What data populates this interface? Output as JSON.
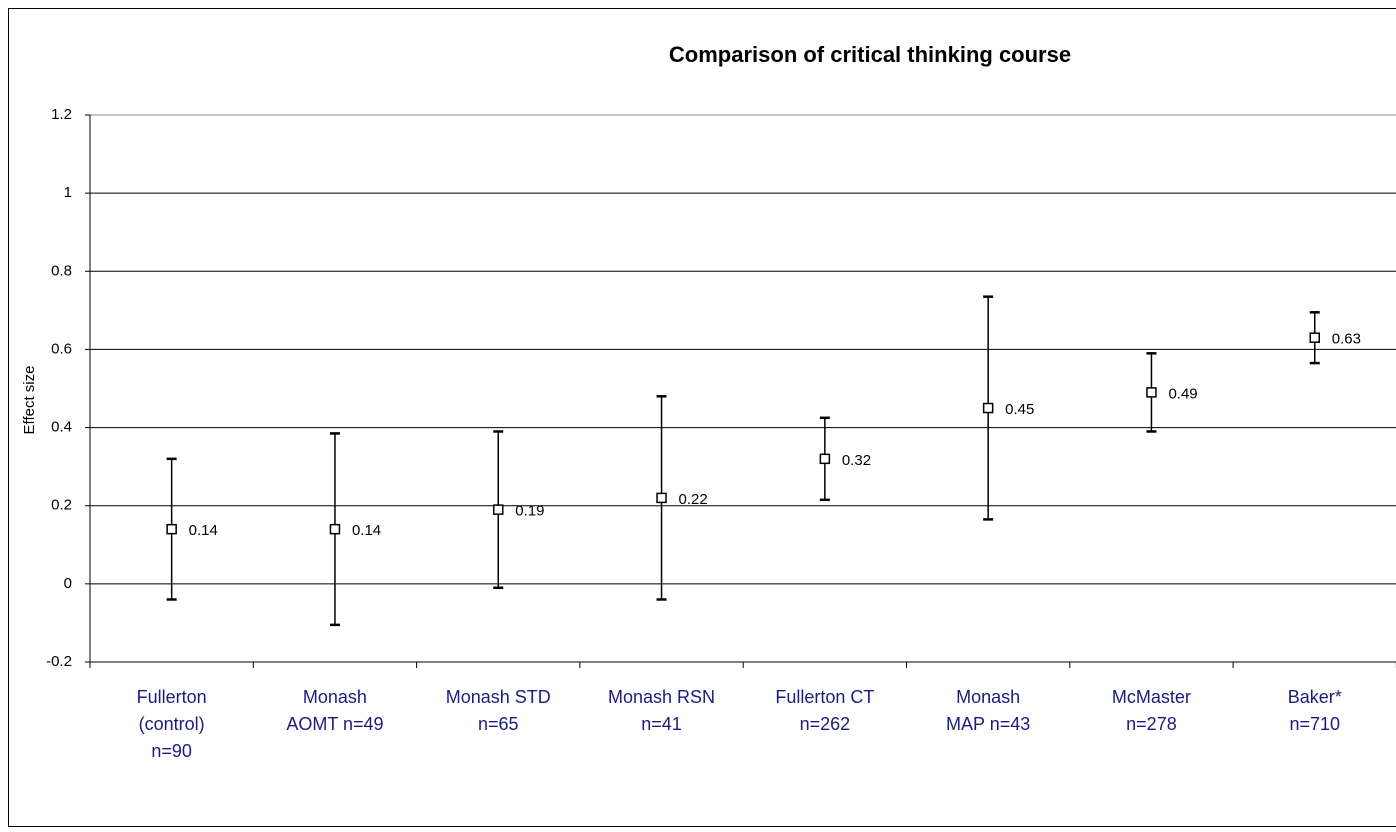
{
  "chart_data": {
    "type": "errorbar",
    "title": "Comparison of critical thinking course",
    "ylabel": "Effect size",
    "categories": [
      "Fullerton\n(control)\nn=90",
      "Monash\nAOMT n=49",
      "Monash STD\nn=65",
      "Monash RSN\nn=41",
      "Fullerton CT\nn=262",
      "Monash\nMAP n=43",
      "McMaster\nn=278",
      "Baker*\nn=710"
    ],
    "values": [
      0.14,
      0.14,
      0.19,
      0.22,
      0.32,
      0.45,
      0.49,
      0.63
    ],
    "errors": [
      0.18,
      0.245,
      0.2,
      0.26,
      0.105,
      0.285,
      0.1,
      0.065
    ],
    "color": "#000000",
    "ylim": [
      -0.2,
      1.2
    ],
    "yticks": [
      -0.2,
      0,
      0.2,
      0.4,
      0.6,
      0.8,
      1,
      1.2
    ],
    "grid": true
  }
}
